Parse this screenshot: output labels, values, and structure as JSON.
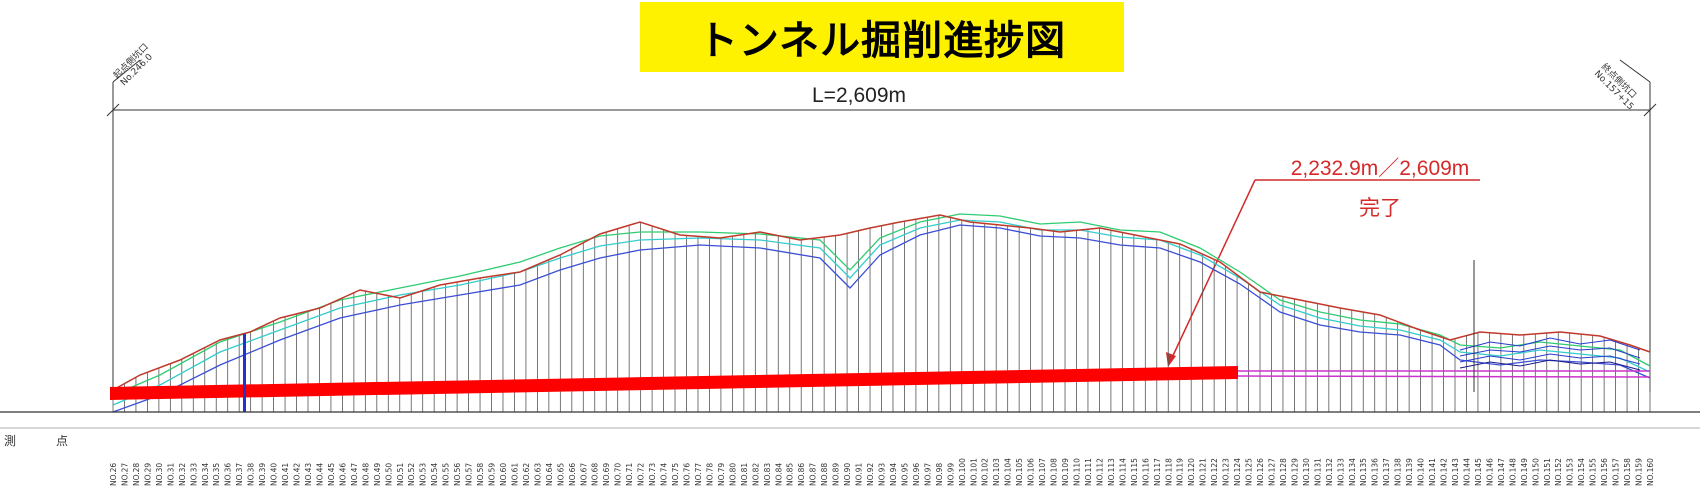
{
  "title": "トンネル掘削進捗図",
  "length_label": "L=2,609m",
  "progress": {
    "label": "2,232.9m／2,609m",
    "status": "完了",
    "excavated_m": 2232.9,
    "total_m": 2609
  },
  "portal_left": {
    "name": "起点側坑口",
    "station": "No.246.0"
  },
  "portal_right": {
    "name": "終点側坑口",
    "station": "No.157+15"
  },
  "row_label": "測点",
  "stations": [
    "NO.26",
    "NO.27",
    "NO.28",
    "NO.29",
    "NO.30",
    "NO.31",
    "NO.32",
    "NO.33",
    "NO.34",
    "NO.35",
    "NO.36",
    "NO.37",
    "NO.38",
    "NO.39",
    "NO.40",
    "NO.41",
    "NO.42",
    "NO.43",
    "NO.44",
    "NO.45",
    "NO.46",
    "NO.47",
    "NO.48",
    "NO.49",
    "NO.50",
    "NO.51",
    "NO.52",
    "NO.53",
    "NO.54",
    "NO.55",
    "NO.56",
    "NO.57",
    "NO.58",
    "NO.59",
    "NO.60",
    "NO.61",
    "NO.62",
    "NO.63",
    "NO.64",
    "NO.65",
    "NO.66",
    "NO.67",
    "NO.68",
    "NO.69",
    "NO.70",
    "NO.71",
    "NO.72",
    "NO.73",
    "NO.74",
    "NO.75",
    "NO.76",
    "NO.77",
    "NO.78",
    "NO.79",
    "NO.80",
    "NO.81",
    "NO.82",
    "NO.83",
    "NO.84",
    "NO.85",
    "NO.86",
    "NO.87",
    "NO.88",
    "NO.89",
    "NO.90",
    "NO.91",
    "NO.92",
    "NO.93",
    "NO.94",
    "NO.95",
    "NO.96",
    "NO.97",
    "NO.98",
    "NO.99",
    "NO.100",
    "NO.101",
    "NO.102",
    "NO.103",
    "NO.104",
    "NO.105",
    "NO.106",
    "NO.107",
    "NO.108",
    "NO.109",
    "NO.110",
    "NO.111",
    "NO.112",
    "NO.113",
    "NO.114",
    "NO.115",
    "NO.116",
    "NO.117",
    "NO.118",
    "NO.119",
    "NO.120",
    "NO.121",
    "NO.122",
    "NO.123",
    "NO.124",
    "NO.125",
    "NO.126",
    "NO.127",
    "NO.128",
    "NO.129",
    "NO.130",
    "NO.131",
    "NO.132",
    "NO.133",
    "NO.134",
    "NO.135",
    "NO.136",
    "NO.137",
    "NO.138",
    "NO.139",
    "NO.140",
    "NO.141",
    "NO.142",
    "NO.143",
    "NO.144",
    "NO.145",
    "NO.146",
    "NO.147",
    "NO.148",
    "NO.149",
    "NO.150",
    "NO.151",
    "NO.152",
    "NO.153",
    "NO.154",
    "NO.155",
    "NO.156",
    "NO.157",
    "NO.158",
    "NO.159",
    "NO.160"
  ],
  "colors": {
    "title_bg": "#fff200",
    "excavated": "#ff0000",
    "remaining": "#cc33cc",
    "annotation": "#d42a2a",
    "ground": "#c0392b",
    "layer_green": "#2ecc71",
    "layer_cyan": "#33cccc",
    "layer_blue": "#3b4fd6"
  }
}
